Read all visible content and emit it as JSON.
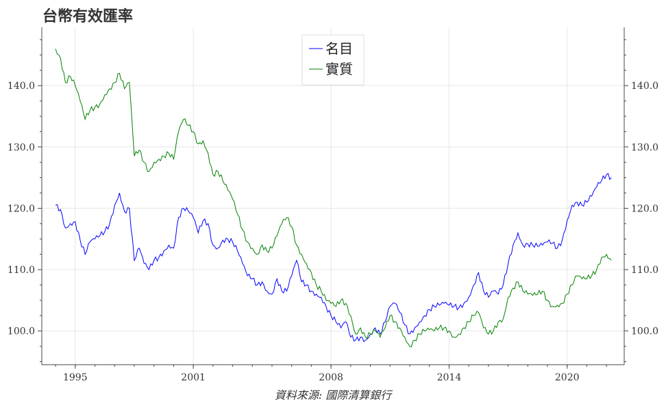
{
  "chart_data": {
    "type": "line",
    "title": "台幣有效匯率",
    "source": "資料來源: 國際清算銀行",
    "xlim": [
      1993.3,
      2022.9
    ],
    "ylim": [
      94.5,
      149.5
    ],
    "x_ticks": [
      1995,
      2001,
      2008,
      2014,
      2020
    ],
    "x_tick_labels": [
      "1995",
      "2001",
      "2008",
      "2014",
      "2020"
    ],
    "y_ticks": [
      100,
      110,
      120,
      130,
      140
    ],
    "y_tick_labels": [
      "100.0",
      "110.0",
      "120.0",
      "130.0",
      "140.0"
    ],
    "grid": true,
    "legend_position": "top-center",
    "series": [
      {
        "name": "名目",
        "color": "#0000ff",
        "points": [
          [
            1994.0,
            120.5
          ],
          [
            1994.25,
            119.8
          ],
          [
            1994.5,
            116.8
          ],
          [
            1994.75,
            117.5
          ],
          [
            1995.0,
            117.8
          ],
          [
            1995.25,
            114.8
          ],
          [
            1995.5,
            112.5
          ],
          [
            1995.75,
            114.5
          ],
          [
            1996.0,
            115.0
          ],
          [
            1996.25,
            115.5
          ],
          [
            1996.5,
            116.2
          ],
          [
            1996.75,
            117.5
          ],
          [
            1997.0,
            120.5
          ],
          [
            1997.25,
            122.5
          ],
          [
            1997.5,
            119.5
          ],
          [
            1997.75,
            120.0
          ],
          [
            1998.0,
            111.5
          ],
          [
            1998.25,
            113.5
          ],
          [
            1998.5,
            111.0
          ],
          [
            1998.75,
            110.0
          ],
          [
            1999.0,
            111.5
          ],
          [
            1999.25,
            112.0
          ],
          [
            1999.5,
            113.0
          ],
          [
            1999.75,
            114.0
          ],
          [
            2000.0,
            113.5
          ],
          [
            2000.25,
            118.5
          ],
          [
            2000.5,
            120.0
          ],
          [
            2000.75,
            119.5
          ],
          [
            2001.0,
            118.5
          ],
          [
            2001.25,
            116.0
          ],
          [
            2001.5,
            118.0
          ],
          [
            2001.75,
            117.5
          ],
          [
            2002.0,
            114.0
          ],
          [
            2002.25,
            113.5
          ],
          [
            2002.5,
            114.8
          ],
          [
            2002.75,
            115.0
          ],
          [
            2003.0,
            114.5
          ],
          [
            2003.25,
            113.0
          ],
          [
            2003.5,
            111.0
          ],
          [
            2003.75,
            109.0
          ],
          [
            2004.0,
            108.5
          ],
          [
            2004.25,
            107.5
          ],
          [
            2004.5,
            108.0
          ],
          [
            2004.75,
            106.5
          ],
          [
            2005.0,
            106.0
          ],
          [
            2005.25,
            108.5
          ],
          [
            2005.5,
            106.5
          ],
          [
            2005.75,
            106.5
          ],
          [
            2006.0,
            109.0
          ],
          [
            2006.25,
            111.5
          ],
          [
            2006.5,
            108.0
          ],
          [
            2006.75,
            107.5
          ],
          [
            2007.0,
            106.5
          ],
          [
            2007.25,
            106.0
          ],
          [
            2007.5,
            105.5
          ],
          [
            2007.75,
            104.0
          ],
          [
            2008.0,
            102.5
          ],
          [
            2008.25,
            101.5
          ],
          [
            2008.5,
            100.5
          ],
          [
            2008.75,
            101.5
          ],
          [
            2009.0,
            99.0
          ],
          [
            2009.25,
            98.5
          ],
          [
            2009.5,
            99.0
          ],
          [
            2009.75,
            98.5
          ],
          [
            2010.0,
            99.5
          ],
          [
            2010.25,
            100.5
          ],
          [
            2010.5,
            99.5
          ],
          [
            2010.75,
            101.5
          ],
          [
            2011.0,
            104.0
          ],
          [
            2011.25,
            104.5
          ],
          [
            2011.5,
            103.0
          ],
          [
            2011.75,
            101.0
          ],
          [
            2012.0,
            99.5
          ],
          [
            2012.25,
            100.5
          ],
          [
            2012.5,
            101.5
          ],
          [
            2012.75,
            102.5
          ],
          [
            2013.0,
            103.5
          ],
          [
            2013.25,
            104.0
          ],
          [
            2013.5,
            104.2
          ],
          [
            2013.75,
            104.5
          ],
          [
            2014.0,
            104.2
          ],
          [
            2014.25,
            104.0
          ],
          [
            2014.5,
            103.8
          ],
          [
            2014.75,
            104.5
          ],
          [
            2015.0,
            105.5
          ],
          [
            2015.25,
            107.5
          ],
          [
            2015.5,
            109.5
          ],
          [
            2015.75,
            106.5
          ],
          [
            2016.0,
            105.5
          ],
          [
            2016.25,
            106.5
          ],
          [
            2016.5,
            106.0
          ],
          [
            2016.75,
            107.5
          ],
          [
            2017.0,
            111.0
          ],
          [
            2017.25,
            114.0
          ],
          [
            2017.5,
            116.0
          ],
          [
            2017.75,
            114.0
          ],
          [
            2018.0,
            114.2
          ],
          [
            2018.25,
            114.0
          ],
          [
            2018.5,
            113.8
          ],
          [
            2018.75,
            114.0
          ],
          [
            2019.0,
            114.5
          ],
          [
            2019.25,
            114.3
          ],
          [
            2019.5,
            113.5
          ],
          [
            2019.75,
            114.8
          ],
          [
            2020.0,
            118.0
          ],
          [
            2020.25,
            120.5
          ],
          [
            2020.5,
            121.0
          ],
          [
            2020.75,
            120.5
          ],
          [
            2021.0,
            121.0
          ],
          [
            2021.25,
            122.0
          ],
          [
            2021.5,
            123.5
          ],
          [
            2021.75,
            124.5
          ],
          [
            2022.0,
            125.5
          ],
          [
            2022.25,
            125.0
          ]
        ]
      },
      {
        "name": "實質",
        "color": "#008000",
        "points": [
          [
            1994.0,
            146.0
          ],
          [
            1994.25,
            144.5
          ],
          [
            1994.5,
            140.5
          ],
          [
            1994.75,
            141.5
          ],
          [
            1995.0,
            140.0
          ],
          [
            1995.25,
            137.5
          ],
          [
            1995.5,
            134.5
          ],
          [
            1995.75,
            136.0
          ],
          [
            1996.0,
            136.5
          ],
          [
            1996.25,
            137.0
          ],
          [
            1996.5,
            138.5
          ],
          [
            1996.75,
            139.5
          ],
          [
            1997.0,
            140.5
          ],
          [
            1997.25,
            142.0
          ],
          [
            1997.5,
            139.5
          ],
          [
            1997.75,
            140.5
          ],
          [
            1998.0,
            128.5
          ],
          [
            1998.25,
            129.5
          ],
          [
            1998.5,
            127.5
          ],
          [
            1998.75,
            126.0
          ],
          [
            1999.0,
            127.5
          ],
          [
            1999.25,
            128.0
          ],
          [
            1999.5,
            128.5
          ],
          [
            1999.75,
            129.0
          ],
          [
            2000.0,
            128.0
          ],
          [
            2000.25,
            132.5
          ],
          [
            2000.5,
            134.5
          ],
          [
            2000.75,
            133.5
          ],
          [
            2001.0,
            132.5
          ],
          [
            2001.25,
            130.5
          ],
          [
            2001.5,
            131.0
          ],
          [
            2001.75,
            129.0
          ],
          [
            2002.0,
            125.5
          ],
          [
            2002.25,
            126.0
          ],
          [
            2002.5,
            124.5
          ],
          [
            2002.75,
            123.0
          ],
          [
            2003.0,
            121.5
          ],
          [
            2003.25,
            119.0
          ],
          [
            2003.5,
            116.5
          ],
          [
            2003.75,
            114.5
          ],
          [
            2004.0,
            113.5
          ],
          [
            2004.25,
            112.5
          ],
          [
            2004.5,
            114.0
          ],
          [
            2004.75,
            113.0
          ],
          [
            2005.0,
            113.5
          ],
          [
            2005.25,
            115.5
          ],
          [
            2005.5,
            117.5
          ],
          [
            2005.75,
            118.5
          ],
          [
            2006.0,
            117.0
          ],
          [
            2006.25,
            114.0
          ],
          [
            2006.5,
            112.5
          ],
          [
            2006.75,
            111.0
          ],
          [
            2007.0,
            109.5
          ],
          [
            2007.25,
            107.5
          ],
          [
            2007.5,
            106.5
          ],
          [
            2007.75,
            105.0
          ],
          [
            2008.0,
            104.5
          ],
          [
            2008.25,
            104.0
          ],
          [
            2008.5,
            105.0
          ],
          [
            2008.75,
            104.5
          ],
          [
            2009.0,
            102.5
          ],
          [
            2009.25,
            99.5
          ],
          [
            2009.5,
            100.5
          ],
          [
            2009.75,
            99.0
          ],
          [
            2010.0,
            99.5
          ],
          [
            2010.25,
            100.0
          ],
          [
            2010.5,
            99.0
          ],
          [
            2010.75,
            100.5
          ],
          [
            2011.0,
            102.5
          ],
          [
            2011.25,
            101.5
          ],
          [
            2011.5,
            100.5
          ],
          [
            2011.75,
            99.0
          ],
          [
            2012.0,
            97.5
          ],
          [
            2012.25,
            98.5
          ],
          [
            2012.5,
            99.5
          ],
          [
            2012.75,
            100.0
          ],
          [
            2013.0,
            100.2
          ],
          [
            2013.25,
            100.0
          ],
          [
            2013.5,
            100.5
          ],
          [
            2013.75,
            100.5
          ],
          [
            2014.0,
            100.0
          ],
          [
            2014.25,
            99.0
          ],
          [
            2014.5,
            99.5
          ],
          [
            2014.75,
            100.5
          ],
          [
            2015.0,
            101.5
          ],
          [
            2015.25,
            102.5
          ],
          [
            2015.5,
            103.0
          ],
          [
            2015.75,
            100.5
          ],
          [
            2016.0,
            99.5
          ],
          [
            2016.25,
            100.0
          ],
          [
            2016.5,
            101.5
          ],
          [
            2016.75,
            102.0
          ],
          [
            2017.0,
            105.5
          ],
          [
            2017.25,
            107.0
          ],
          [
            2017.5,
            108.0
          ],
          [
            2017.75,
            106.5
          ],
          [
            2018.0,
            106.0
          ],
          [
            2018.25,
            105.8
          ],
          [
            2018.5,
            106.0
          ],
          [
            2018.75,
            106.5
          ],
          [
            2019.0,
            105.0
          ],
          [
            2019.25,
            104.0
          ],
          [
            2019.5,
            104.2
          ],
          [
            2019.75,
            104.5
          ],
          [
            2020.0,
            106.0
          ],
          [
            2020.25,
            107.5
          ],
          [
            2020.5,
            109.0
          ],
          [
            2020.75,
            108.5
          ],
          [
            2021.0,
            108.5
          ],
          [
            2021.25,
            109.0
          ],
          [
            2021.5,
            110.0
          ],
          [
            2021.75,
            112.0
          ],
          [
            2022.0,
            112.5
          ],
          [
            2022.25,
            111.5
          ]
        ]
      }
    ]
  }
}
